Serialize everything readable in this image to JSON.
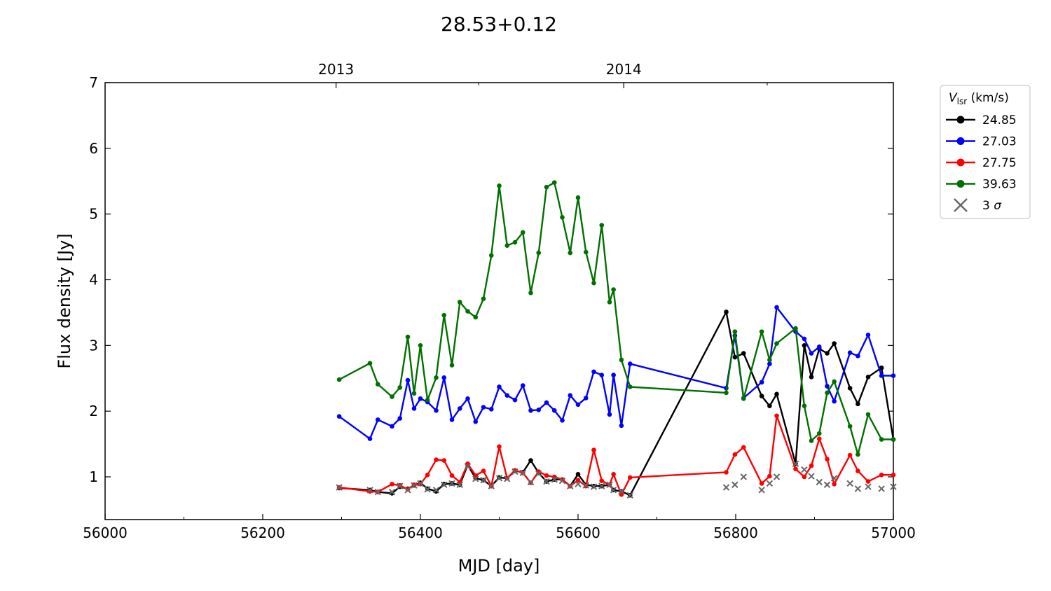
{
  "chart_data": {
    "type": "line",
    "title": "28.53+0.12",
    "xlabel": "MJD [day]",
    "ylabel": "Flux density [Jy]",
    "xlim": [
      56000,
      57000
    ],
    "ylim": [
      0.35,
      7
    ],
    "x_ticks": [
      56000,
      56200,
      56400,
      56600,
      56800,
      57000
    ],
    "y_ticks": [
      1,
      2,
      3,
      4,
      5,
      6,
      7
    ],
    "x_minor_ticks": [
      56100,
      56300,
      56500,
      56700,
      56900
    ],
    "top_axis": {
      "ticks": [
        {
          "x": 56293,
          "label": "2013"
        },
        {
          "x": 56658,
          "label": "2014"
        }
      ],
      "minor_ticks": [
        56474,
        56840
      ]
    },
    "grid": false,
    "legend": {
      "title": "V_lsr (km/s)",
      "title_main": "V",
      "title_sub": "lsr",
      "title_rest": " (km/s)",
      "placement": "outside-top-right",
      "entries": [
        "24.85",
        "27.03",
        "27.75",
        "39.63",
        "3 σ"
      ],
      "sigma_num": "3 ",
      "sigma_sym": "σ"
    },
    "series": [
      {
        "name": "24.85",
        "color": "#000000",
        "x": [
          56297,
          56336,
          56346,
          56364,
          56374,
          56384,
          56392,
          56400,
          56409,
          56420,
          56430,
          56440,
          56450,
          56460,
          56470,
          56480,
          56490,
          56500,
          56510,
          56520,
          56530,
          56540,
          56550,
          56560,
          56570,
          56580,
          56590,
          56600,
          56610,
          56620,
          56630,
          56640,
          56645,
          56655,
          56666,
          56788,
          56799,
          56810,
          56833,
          56843,
          56852,
          56876,
          56887,
          56896,
          56906,
          56916,
          56925,
          56945,
          56955,
          56968,
          56985,
          57000
        ],
        "y": [
          0.83,
          0.8,
          0.77,
          0.75,
          0.85,
          0.82,
          0.87,
          0.91,
          0.82,
          0.78,
          0.89,
          0.9,
          0.88,
          1.18,
          0.98,
          0.95,
          0.86,
          0.99,
          0.98,
          1.09,
          1.07,
          1.25,
          1.06,
          0.93,
          0.96,
          0.96,
          0.86,
          1.04,
          0.88,
          0.86,
          0.86,
          0.88,
          0.8,
          0.78,
          0.72,
          3.51,
          2.82,
          2.88,
          2.23,
          2.08,
          2.26,
          1.2,
          3.0,
          2.52,
          2.95,
          2.88,
          3.03,
          2.35,
          2.11,
          2.52,
          2.66,
          1.57
        ]
      },
      {
        "name": "27.03",
        "color": "#0000ff",
        "x": [
          56297,
          56336,
          56346,
          56364,
          56374,
          56384,
          56392,
          56400,
          56409,
          56420,
          56430,
          56440,
          56450,
          56460,
          56470,
          56480,
          56490,
          56500,
          56510,
          56520,
          56530,
          56540,
          56550,
          56560,
          56570,
          56580,
          56590,
          56600,
          56610,
          56620,
          56630,
          56640,
          56645,
          56655,
          56666,
          56788,
          56799,
          56810,
          56833,
          56843,
          56852,
          56876,
          56887,
          56896,
          56906,
          56916,
          56925,
          56945,
          56955,
          56968,
          56985,
          57000
        ],
        "y": [
          1.92,
          1.58,
          1.87,
          1.77,
          1.89,
          2.47,
          2.04,
          2.19,
          2.14,
          2.01,
          2.51,
          1.87,
          2.04,
          2.19,
          1.84,
          2.06,
          2.03,
          2.37,
          2.24,
          2.17,
          2.39,
          2.01,
          2.02,
          2.13,
          2.01,
          1.86,
          2.24,
          2.1,
          2.2,
          2.6,
          2.55,
          1.95,
          2.55,
          1.78,
          2.72,
          2.35,
          3.15,
          2.2,
          2.44,
          2.72,
          3.58,
          3.21,
          3.1,
          2.88,
          2.98,
          2.38,
          2.15,
          2.89,
          2.84,
          3.16,
          2.54,
          2.54
        ]
      },
      {
        "name": "27.75",
        "color": "#ff0000",
        "x": [
          56297,
          56336,
          56346,
          56364,
          56374,
          56384,
          56392,
          56400,
          56409,
          56420,
          56430,
          56440,
          56450,
          56460,
          56470,
          56480,
          56490,
          56500,
          56510,
          56520,
          56530,
          56540,
          56550,
          56560,
          56570,
          56580,
          56590,
          56600,
          56610,
          56620,
          56630,
          56640,
          56645,
          56655,
          56666,
          56788,
          56799,
          56810,
          56833,
          56843,
          56852,
          56876,
          56887,
          56896,
          56906,
          56916,
          56925,
          56945,
          56955,
          56968,
          56985,
          57000
        ],
        "y": [
          0.84,
          0.78,
          0.77,
          0.89,
          0.87,
          0.81,
          0.88,
          0.89,
          1.03,
          1.26,
          1.25,
          1.02,
          0.92,
          1.2,
          1.02,
          1.09,
          0.86,
          1.46,
          0.98,
          1.1,
          1.06,
          0.91,
          1.08,
          1.02,
          1.0,
          0.96,
          0.86,
          0.95,
          0.86,
          1.41,
          0.94,
          0.88,
          1.04,
          0.73,
          0.99,
          1.07,
          1.34,
          1.45,
          0.9,
          1.01,
          1.93,
          1.12,
          1.0,
          1.17,
          1.58,
          1.27,
          0.89,
          1.33,
          1.09,
          0.93,
          1.03,
          1.03
        ]
      },
      {
        "name": "39.63",
        "color": "#007000",
        "x": [
          56297,
          56336,
          56346,
          56364,
          56374,
          56384,
          56392,
          56400,
          56409,
          56420,
          56430,
          56440,
          56450,
          56460,
          56470,
          56480,
          56490,
          56500,
          56510,
          56520,
          56530,
          56540,
          56550,
          56560,
          56570,
          56580,
          56590,
          56600,
          56610,
          56620,
          56630,
          56640,
          56645,
          56655,
          56666,
          56788,
          56799,
          56810,
          56833,
          56843,
          56852,
          56876,
          56887,
          56896,
          56906,
          56916,
          56925,
          56945,
          56955,
          56968,
          56985,
          57000
        ],
        "y": [
          2.48,
          2.73,
          2.41,
          2.22,
          2.36,
          3.13,
          2.27,
          3.0,
          2.17,
          2.51,
          3.46,
          2.7,
          3.66,
          3.52,
          3.43,
          3.71,
          4.37,
          5.43,
          4.52,
          4.57,
          4.72,
          3.8,
          4.41,
          5.41,
          5.48,
          4.95,
          4.41,
          5.25,
          4.42,
          3.95,
          4.83,
          3.66,
          3.85,
          2.78,
          2.37,
          2.28,
          3.21,
          2.19,
          3.21,
          2.78,
          3.03,
          3.26,
          2.08,
          1.55,
          1.66,
          2.28,
          2.45,
          1.77,
          1.34,
          1.95,
          1.57,
          1.57
        ]
      }
    ],
    "sigma3": {
      "name": "3 σ",
      "color": "#666666",
      "x": [
        56297,
        56336,
        56346,
        56364,
        56374,
        56384,
        56392,
        56400,
        56409,
        56420,
        56430,
        56440,
        56450,
        56460,
        56470,
        56480,
        56490,
        56500,
        56510,
        56520,
        56530,
        56540,
        56550,
        56560,
        56570,
        56580,
        56590,
        56600,
        56610,
        56620,
        56630,
        56640,
        56645,
        56655,
        56666,
        56788,
        56799,
        56810,
        56833,
        56843,
        56852,
        56876,
        56887,
        56896,
        56906,
        56916,
        56925,
        56945,
        56955,
        56968,
        56985,
        57000
      ],
      "y": [
        0.84,
        0.8,
        0.77,
        0.77,
        0.86,
        0.8,
        0.87,
        0.9,
        0.81,
        0.8,
        0.88,
        0.9,
        0.88,
        1.16,
        0.97,
        0.95,
        0.86,
        0.98,
        0.97,
        1.08,
        1.06,
        0.92,
        1.05,
        0.93,
        0.96,
        0.94,
        0.86,
        0.89,
        0.87,
        0.85,
        0.86,
        0.88,
        0.8,
        0.78,
        0.72,
        0.84,
        0.88,
        1.0,
        0.8,
        0.9,
        1.0,
        1.2,
        1.11,
        1.01,
        0.92,
        0.88,
        0.98,
        0.9,
        0.82,
        0.85,
        0.82,
        0.85
      ]
    }
  }
}
